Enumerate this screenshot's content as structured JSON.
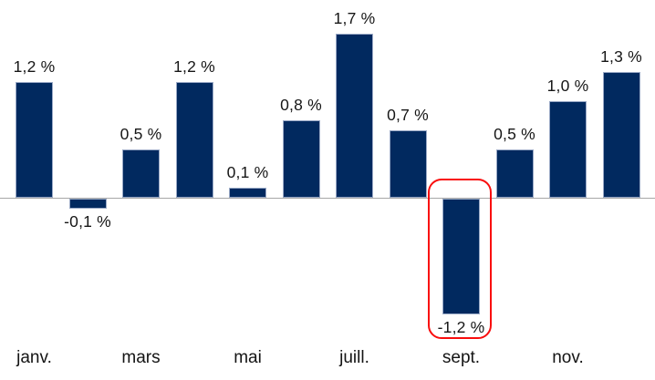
{
  "chart_data": {
    "type": "bar",
    "title": "",
    "xlabel": "",
    "ylabel": "",
    "ylim": [
      -1.4,
      1.9
    ],
    "grid": false,
    "legend": false,
    "values": [
      1.2,
      -0.1,
      0.5,
      1.2,
      0.1,
      0.8,
      1.7,
      0.7,
      -1.2,
      0.5,
      1.0,
      1.3
    ],
    "value_labels": [
      "1,2 %",
      "-0,1 %",
      "0,5 %",
      "1,2 %",
      "0,1 %",
      "0,8 %",
      "1,7 %",
      "0,7 %",
      "-1,2 %",
      "0,5 %",
      "1,0 %",
      "1,3 %"
    ],
    "x_tick_labels": [
      "janv.",
      "mars",
      "mai",
      "juill.",
      "sept.",
      "nov."
    ],
    "x_tick_bar_indexes": [
      0,
      2,
      4,
      6,
      8,
      10
    ],
    "highlighted_index": 8,
    "colors": {
      "bar_fill": "#01295f",
      "bar_border": "#9aa9c6",
      "axis_line": "#a6a6a6",
      "label_text": "#161616",
      "highlight_border": "#f90d0d"
    }
  }
}
